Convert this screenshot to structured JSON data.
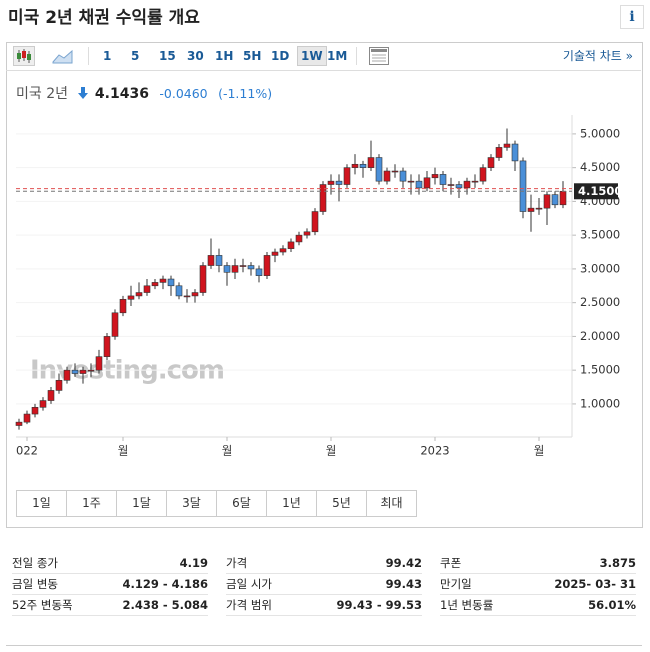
{
  "header": {
    "title": "미국 2년 채권 수익률 개요",
    "info": "i"
  },
  "toolbar": {
    "intervals": [
      "1",
      "5",
      "15",
      "30",
      "1H",
      "5H",
      "1D",
      "1W",
      "1M"
    ],
    "active_interval": "1W",
    "technical": "기술적 차트 »"
  },
  "quote": {
    "name": "미국 2년",
    "last": "4.1436",
    "change": "-0.0460",
    "change_pct": "(-1.11%)"
  },
  "chart_data": {
    "type": "candlestick",
    "watermark": "Investing.com",
    "categories": [
      null,
      "022",
      null,
      null,
      null,
      null,
      null,
      null,
      null,
      null,
      null,
      null,
      null,
      "월",
      null,
      null,
      null,
      null,
      null,
      null,
      null,
      null,
      null,
      null,
      null,
      null,
      "월",
      null,
      null,
      null,
      null,
      null,
      null,
      null,
      null,
      null,
      null,
      null,
      null,
      "월",
      null,
      null,
      null,
      null,
      null,
      null,
      null,
      null,
      null,
      null,
      null,
      null,
      "2023",
      null,
      null,
      null,
      null,
      null,
      null,
      null,
      null,
      null,
      null,
      null,
      null,
      "월",
      null,
      null,
      null
    ],
    "open": [
      0.68,
      0.73,
      0.85,
      0.95,
      1.05,
      1.2,
      1.35,
      1.5,
      1.45,
      1.5,
      1.5,
      1.7,
      2.0,
      2.35,
      2.55,
      2.6,
      2.65,
      2.75,
      2.8,
      2.85,
      2.75,
      2.6,
      2.6,
      2.65,
      3.05,
      3.2,
      3.05,
      2.95,
      3.05,
      3.05,
      3.0,
      2.9,
      3.2,
      3.25,
      3.3,
      3.4,
      3.5,
      3.55,
      3.85,
      4.25,
      4.3,
      4.25,
      4.5,
      4.55,
      4.5,
      4.65,
      4.3,
      4.45,
      4.45,
      4.3,
      4.3,
      4.2,
      4.35,
      4.4,
      4.25,
      4.25,
      4.2,
      4.3,
      4.3,
      4.5,
      4.65,
      4.8,
      4.85,
      4.6,
      3.85,
      3.9,
      3.9,
      4.1,
      3.95
    ],
    "high": [
      0.78,
      0.9,
      1.0,
      1.1,
      1.25,
      1.45,
      1.55,
      1.6,
      1.55,
      1.6,
      1.8,
      2.05,
      2.4,
      2.6,
      2.75,
      2.8,
      2.85,
      2.85,
      2.9,
      2.9,
      2.8,
      2.7,
      2.7,
      3.1,
      3.45,
      3.3,
      3.1,
      3.15,
      3.15,
      3.1,
      3.05,
      3.25,
      3.3,
      3.35,
      3.45,
      3.55,
      3.6,
      3.9,
      4.3,
      4.4,
      4.4,
      4.55,
      4.7,
      4.6,
      4.9,
      4.7,
      4.5,
      4.55,
      4.5,
      4.4,
      4.4,
      4.45,
      4.5,
      4.45,
      4.35,
      4.3,
      4.35,
      4.4,
      4.55,
      4.7,
      4.85,
      5.08,
      4.9,
      4.65,
      4.1,
      4.05,
      4.15,
      4.15,
      4.3
    ],
    "low": [
      0.62,
      0.7,
      0.8,
      0.9,
      1.0,
      1.15,
      1.3,
      1.4,
      1.3,
      1.4,
      1.45,
      1.65,
      1.95,
      2.3,
      2.45,
      2.55,
      2.6,
      2.7,
      2.7,
      2.6,
      2.55,
      2.5,
      2.5,
      2.6,
      3.0,
      2.95,
      2.75,
      2.85,
      2.95,
      2.9,
      2.8,
      2.85,
      3.1,
      3.2,
      3.25,
      3.35,
      3.45,
      3.5,
      3.8,
      4.1,
      4.0,
      4.2,
      4.4,
      4.35,
      4.45,
      4.25,
      4.25,
      4.35,
      4.2,
      4.1,
      4.1,
      4.15,
      4.25,
      4.15,
      4.1,
      4.05,
      4.1,
      4.2,
      4.25,
      4.45,
      4.6,
      4.75,
      4.45,
      3.75,
      3.55,
      3.8,
      3.65,
      3.9,
      3.9
    ],
    "close": [
      0.73,
      0.85,
      0.95,
      1.05,
      1.2,
      1.35,
      1.5,
      1.45,
      1.5,
      1.5,
      1.7,
      2.0,
      2.35,
      2.55,
      2.6,
      2.65,
      2.75,
      2.8,
      2.85,
      2.75,
      2.6,
      2.6,
      2.65,
      3.05,
      3.2,
      3.05,
      2.95,
      3.05,
      3.05,
      3.0,
      2.9,
      3.2,
      3.25,
      3.3,
      3.4,
      3.5,
      3.55,
      3.85,
      4.25,
      4.3,
      4.25,
      4.5,
      4.55,
      4.5,
      4.65,
      4.3,
      4.45,
      4.45,
      4.3,
      4.3,
      4.2,
      4.35,
      4.4,
      4.25,
      4.25,
      4.2,
      4.3,
      4.3,
      4.5,
      4.65,
      4.8,
      4.85,
      4.6,
      3.85,
      3.9,
      3.9,
      4.1,
      3.95,
      4.15
    ],
    "up_color": "#d0141e",
    "down_color": "#4a8fd8",
    "ylim": [
      0.51,
      5.28
    ],
    "yticks": [
      {
        "value": 1,
        "label": "1.0000"
      },
      {
        "value": 1.5,
        "label": "1.5000"
      },
      {
        "value": 2,
        "label": "2.0000"
      },
      {
        "value": 2.5,
        "label": "2.5000"
      },
      {
        "value": 3,
        "label": "3.0000"
      },
      {
        "value": 3.5,
        "label": "3.5000"
      },
      {
        "value": 4,
        "label": "4.0000"
      },
      {
        "value": 4.5,
        "label": "4.5000"
      },
      {
        "value": 5,
        "label": "5.0000"
      }
    ],
    "grid": true,
    "last_price": {
      "value": 4.15,
      "label": "4.1500"
    },
    "prev_close": 4.19
  },
  "ranges": [
    "1일",
    "1주",
    "1달",
    "3달",
    "6달",
    "1년",
    "5년",
    "최대"
  ],
  "stats": [
    [
      [
        "전일 종가",
        "4.19"
      ],
      [
        "금일 변동",
        "4.129 - 4.186"
      ],
      [
        "52주 변동폭",
        "2.438 - 5.084"
      ]
    ],
    [
      [
        "가격",
        "99.42"
      ],
      [
        "금일 시가",
        "99.43"
      ],
      [
        "가격 범위",
        "99.43 - 99.53"
      ]
    ],
    [
      [
        "쿠폰",
        "3.875"
      ],
      [
        "만기일",
        "2025- 03- 31"
      ],
      [
        "1년 변동률",
        "56.01%"
      ]
    ]
  ]
}
